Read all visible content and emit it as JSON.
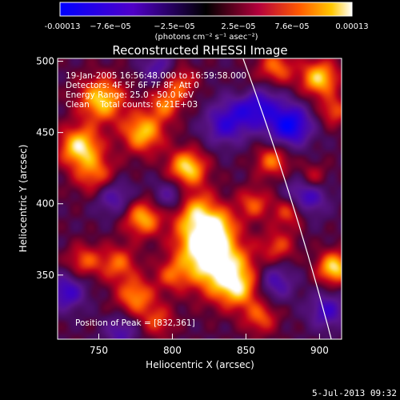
{
  "chart_data": {
    "type": "heatmap",
    "title": "Reconstructed RHESSI Image",
    "xlabel": "Heliocentric X (arcsec)",
    "ylabel": "Heliocentric Y (arcsec)",
    "xlim": [
      722,
      915
    ],
    "ylim": [
      305,
      502
    ],
    "x_ticks": [
      750,
      800,
      850,
      900
    ],
    "y_ticks": [
      350,
      400,
      450,
      500
    ],
    "colorbar": {
      "ticks": [
        "-0.00013",
        "−7.6e−05",
        "−2.5e−05",
        "2.5e−05",
        "7.6e−05",
        "0.00013"
      ],
      "unit_line": "(photons cm⁻² s⁻¹ asec⁻²)",
      "range": [
        -0.00013,
        0.00013
      ]
    },
    "annotations": [
      "19-Jan-2005 16:56:48.000 to 16:59:58.000",
      "Detectors: 4F 5F 6F 7F 8F, Att 0",
      "Energy Range: 25.0 - 50.0 keV",
      "Clean    Total counts: 6.21E+03"
    ],
    "peak_label": "Position of Peak = [832,361]",
    "peak": [
      832,
      361
    ],
    "blobs": [
      {
        "x": 832,
        "y": 357,
        "v": 1.0,
        "s": 15
      },
      {
        "x": 818,
        "y": 372,
        "v": 0.7,
        "s": 12
      },
      {
        "x": 845,
        "y": 340,
        "v": 0.6,
        "s": 10
      },
      {
        "x": 815,
        "y": 395,
        "v": 0.75,
        "s": 11
      },
      {
        "x": 832,
        "y": 385,
        "v": 0.55,
        "s": 8
      },
      {
        "x": 752,
        "y": 473,
        "v": 0.85,
        "s": 11
      },
      {
        "x": 737,
        "y": 440,
        "v": 0.9,
        "s": 10
      },
      {
        "x": 748,
        "y": 420,
        "v": 0.55,
        "s": 10
      },
      {
        "x": 780,
        "y": 450,
        "v": 0.8,
        "s": 10
      },
      {
        "x": 795,
        "y": 470,
        "v": 0.55,
        "s": 8
      },
      {
        "x": 810,
        "y": 425,
        "v": 0.9,
        "s": 9
      },
      {
        "x": 805,
        "y": 485,
        "v": 0.5,
        "s": 8
      },
      {
        "x": 780,
        "y": 390,
        "v": 0.75,
        "s": 9
      },
      {
        "x": 763,
        "y": 358,
        "v": 0.55,
        "s": 9
      },
      {
        "x": 740,
        "y": 360,
        "v": 0.5,
        "s": 8
      },
      {
        "x": 775,
        "y": 335,
        "v": 0.65,
        "s": 9
      },
      {
        "x": 790,
        "y": 318,
        "v": 0.45,
        "s": 8
      },
      {
        "x": 870,
        "y": 495,
        "v": 0.6,
        "s": 9
      },
      {
        "x": 900,
        "y": 488,
        "v": 0.85,
        "s": 9
      },
      {
        "x": 910,
        "y": 465,
        "v": 0.5,
        "s": 7
      },
      {
        "x": 868,
        "y": 430,
        "v": 0.6,
        "s": 8
      },
      {
        "x": 855,
        "y": 400,
        "v": 0.5,
        "s": 8
      },
      {
        "x": 880,
        "y": 395,
        "v": 0.6,
        "s": 8
      },
      {
        "x": 872,
        "y": 370,
        "v": 0.45,
        "s": 8
      },
      {
        "x": 910,
        "y": 355,
        "v": 0.9,
        "s": 8
      },
      {
        "x": 895,
        "y": 418,
        "v": 0.45,
        "s": 7
      },
      {
        "x": 860,
        "y": 320,
        "v": 0.5,
        "s": 8
      },
      {
        "x": 800,
        "y": 350,
        "v": 0.45,
        "s": 8
      },
      {
        "x": 850,
        "y": 480,
        "v": 0.4,
        "s": 8
      },
      {
        "x": 855,
        "y": 470,
        "v": -0.8,
        "s": 12
      },
      {
        "x": 880,
        "y": 455,
        "v": -0.9,
        "s": 10
      },
      {
        "x": 890,
        "y": 405,
        "v": -0.7,
        "s": 10
      },
      {
        "x": 835,
        "y": 455,
        "v": -0.55,
        "s": 10
      },
      {
        "x": 800,
        "y": 405,
        "v": -0.5,
        "s": 9
      },
      {
        "x": 760,
        "y": 405,
        "v": -0.5,
        "s": 9
      },
      {
        "x": 728,
        "y": 338,
        "v": -0.6,
        "s": 9
      },
      {
        "x": 905,
        "y": 325,
        "v": -0.55,
        "s": 9
      },
      {
        "x": 870,
        "y": 345,
        "v": -0.5,
        "s": 9
      },
      {
        "x": 790,
        "y": 495,
        "v": -0.45,
        "s": 8
      },
      {
        "x": 765,
        "y": 310,
        "v": -0.45,
        "s": 8
      }
    ]
  },
  "footer": {
    "date": "5-Jul-2013 09:32"
  },
  "colors": {
    "background": "#000000",
    "axes": "#ffffff",
    "limb": "#ffffff"
  }
}
